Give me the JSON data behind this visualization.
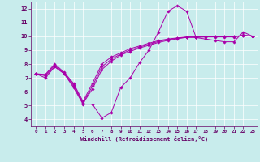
{
  "xlabel": "Windchill (Refroidissement éolien,°C)",
  "background_color": "#c8ecec",
  "line_color": "#aa00aa",
  "grid_color": "#ffffff",
  "xlim": [
    -0.5,
    23.5
  ],
  "ylim": [
    3.5,
    12.5
  ],
  "yticks": [
    4,
    5,
    6,
    7,
    8,
    9,
    10,
    11,
    12
  ],
  "xticks": [
    0,
    1,
    2,
    3,
    4,
    5,
    6,
    7,
    8,
    9,
    10,
    11,
    12,
    13,
    14,
    15,
    16,
    17,
    18,
    19,
    20,
    21,
    22,
    23
  ],
  "lines": [
    {
      "x": [
        0,
        1,
        2,
        3,
        4,
        5,
        6,
        7,
        8,
        9,
        10,
        11,
        12,
        13,
        14,
        15,
        16,
        17,
        18,
        19,
        20,
        21,
        22,
        23
      ],
      "y": [
        7.3,
        7.0,
        7.8,
        7.3,
        6.3,
        5.1,
        5.1,
        4.1,
        4.5,
        6.3,
        7.0,
        8.1,
        9.0,
        10.3,
        11.8,
        12.2,
        11.8,
        9.9,
        9.8,
        9.7,
        9.6,
        9.6,
        10.3,
        10.0
      ]
    },
    {
      "x": [
        0,
        1,
        2,
        3,
        4,
        5,
        6,
        7,
        8,
        9,
        10,
        11,
        12,
        13,
        14,
        15,
        16,
        17,
        18,
        19,
        20,
        21,
        22,
        23
      ],
      "y": [
        7.3,
        7.15,
        7.8,
        7.3,
        6.4,
        5.15,
        6.2,
        7.6,
        8.2,
        8.65,
        8.9,
        9.15,
        9.35,
        9.55,
        9.7,
        9.82,
        9.92,
        9.92,
        9.95,
        9.95,
        9.95,
        9.95,
        10.05,
        10.0
      ]
    },
    {
      "x": [
        0,
        1,
        2,
        3,
        4,
        5,
        6,
        7,
        8,
        9,
        10,
        11,
        12,
        13,
        14,
        15,
        16,
        17,
        18,
        19,
        20,
        21,
        22,
        23
      ],
      "y": [
        7.3,
        7.2,
        7.9,
        7.35,
        6.5,
        5.2,
        6.4,
        7.8,
        8.35,
        8.72,
        9.0,
        9.22,
        9.42,
        9.62,
        9.76,
        9.85,
        9.93,
        9.93,
        9.96,
        9.96,
        9.96,
        9.96,
        10.06,
        10.0
      ]
    },
    {
      "x": [
        0,
        1,
        2,
        3,
        4,
        5,
        6,
        7,
        8,
        9,
        10,
        11,
        12,
        13,
        14,
        15,
        16,
        17,
        18,
        19,
        20,
        21,
        22,
        23
      ],
      "y": [
        7.3,
        7.25,
        8.0,
        7.4,
        6.6,
        5.3,
        6.6,
        8.0,
        8.5,
        8.8,
        9.1,
        9.3,
        9.5,
        9.68,
        9.8,
        9.88,
        9.95,
        9.95,
        9.97,
        9.97,
        9.97,
        9.97,
        10.08,
        10.0
      ]
    }
  ]
}
